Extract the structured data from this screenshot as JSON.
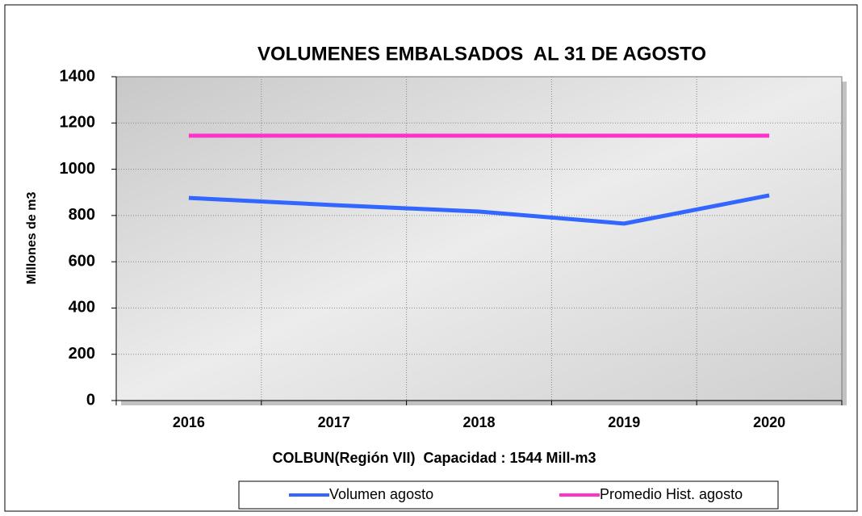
{
  "chart_data": {
    "type": "line",
    "title": "VOLUMENES EMBALSADOS  AL 31 DE AGOSTO",
    "y_label": "Millones de m3",
    "x_label": "COLBUN(Región VII)  Capacidad : 1544 Mill-m3",
    "categories": [
      "2016",
      "2017",
      "2018",
      "2019",
      "2020"
    ],
    "series": [
      {
        "name": "Volumen agosto",
        "color": "#3366ff",
        "values": [
          876,
          845,
          817,
          765,
          887
        ]
      },
      {
        "name": "Promedio Hist. agosto",
        "color": "#ff33cc",
        "values": [
          1145,
          1145,
          1145,
          1145,
          1145
        ]
      }
    ],
    "ylim": [
      0,
      1400
    ],
    "yticks": [
      0,
      200,
      400,
      600,
      800,
      1000,
      1200,
      1400
    ],
    "grid": true,
    "legend": "bottom"
  }
}
